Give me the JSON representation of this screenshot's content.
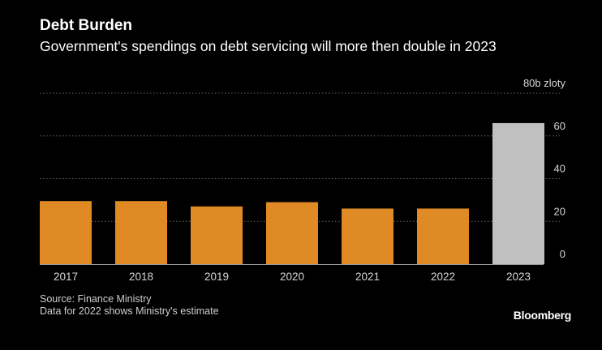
{
  "header": {
    "title": "Debt Burden",
    "subtitle": "Government's spendings on debt servicing will more then double in 2023"
  },
  "footer": {
    "source": "Source: Finance Ministry",
    "note": "Data for 2022 shows Ministry's estimate",
    "logo": "Bloomberg"
  },
  "colors": {
    "bar": "#df8a24",
    "highlight_bar": "#c0c0c0",
    "grid": "#6a6a6a",
    "text": "#ffffff",
    "axis_text": "#d6d6d6"
  },
  "chart_data": {
    "type": "bar",
    "title": "Debt Burden",
    "subtitle": "Government's spendings on debt servicing will more then double in 2023",
    "categories": [
      "2017",
      "2018",
      "2019",
      "2020",
      "2021",
      "2022",
      "2023"
    ],
    "values": [
      29.5,
      29.5,
      27,
      29,
      26,
      26,
      66
    ],
    "highlight": [
      "2023"
    ],
    "ylim": [
      0,
      80
    ],
    "yticks": [
      0,
      20,
      40,
      60,
      80
    ],
    "ytick_labels": [
      "0",
      "20",
      "40",
      "60",
      "80b zloty"
    ],
    "y_axis_position": "right",
    "grid": true,
    "grid_style": "dotted",
    "legend": "none",
    "xlabel": "",
    "ylabel": ""
  }
}
